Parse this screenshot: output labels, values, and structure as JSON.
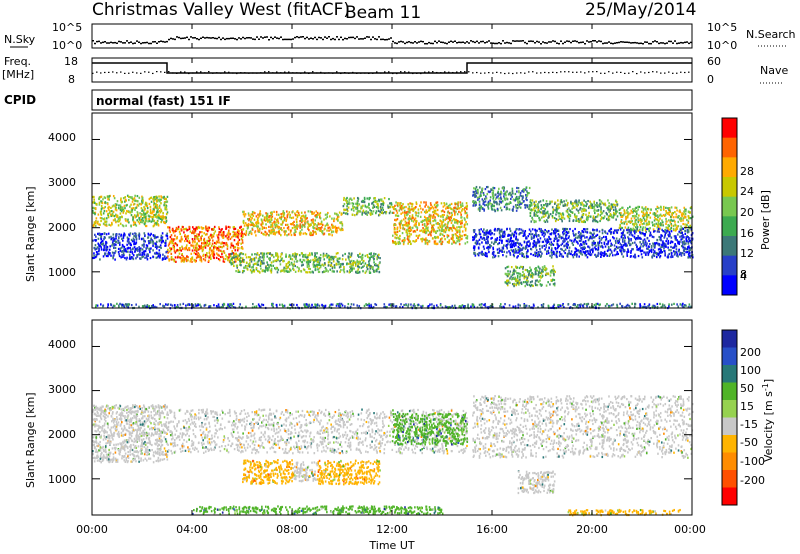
{
  "header": {
    "title": "Christmas Valley West (fitACF)",
    "beam": "Beam 11",
    "date": "25/May/2014"
  },
  "status_panels": {
    "nsky_label": "N.Sky",
    "nsearch_label": "N.Search",
    "nsky_ticks": [
      "10^5",
      "10^0"
    ],
    "nsearch_ticks": [
      "10^5",
      "10^0"
    ],
    "freq_label_line1": "Freq.",
    "freq_label_line2": "[MHz]",
    "freq_ticks": [
      "18",
      "8"
    ],
    "nave_label": "Nave",
    "nave_ticks": [
      "60",
      "0"
    ],
    "cpid_label": "CPID",
    "cpid_text": "normal (fast) 151 IF",
    "freq_step": [
      {
        "t": 0,
        "level": "high"
      },
      {
        "t": 3.0,
        "level": "low"
      },
      {
        "t": 15.0,
        "level": "high"
      },
      {
        "t": 24,
        "level": "high"
      }
    ]
  },
  "x_axis": {
    "label": "Time UT",
    "ticks": [
      "00:00",
      "04:00",
      "08:00",
      "12:00",
      "16:00",
      "20:00",
      "00:00"
    ],
    "tick_hours": [
      0,
      4,
      8,
      12,
      16,
      20,
      24
    ]
  },
  "power_panel": {
    "ylabel": "Slant Range [km]",
    "yticks": [
      "4000",
      "3000",
      "2000",
      "1000"
    ],
    "colorbar_label": "Power [dB]",
    "colorbar_ticks": [
      "28",
      "24",
      "20",
      "16",
      "12",
      "8",
      "4"
    ],
    "colors": [
      "#0000ff",
      "#2840c8",
      "#3c7878",
      "#3caa50",
      "#78c850",
      "#c8c800",
      "#ffaa00",
      "#ff6400",
      "#ff0000"
    ]
  },
  "velocity_panel": {
    "ylabel": "Slant Range [km]",
    "yticks": [
      "4000",
      "3000",
      "2000",
      "1000"
    ],
    "colorbar_label": "Velocity [m s^-1]",
    "colorbar_ticks": [
      "200",
      "100",
      "50",
      "15",
      "-15",
      "-50",
      "-100",
      "-200"
    ],
    "colors": [
      "#1e28a0",
      "#2850c8",
      "#287878",
      "#50b428",
      "#96d250",
      "#c8c8c8",
      "#ffb400",
      "#ff8c00",
      "#ff5000",
      "#ff0000"
    ]
  },
  "chart_data": {
    "type": "heatmap",
    "x_range_hours": [
      0,
      24
    ],
    "y_range_km": [
      180,
      4600
    ],
    "power_bands": [
      {
        "t0": 0.0,
        "t1": 3.0,
        "r0": 2050,
        "r1": 2750,
        "level": 5
      },
      {
        "t0": 0.0,
        "t1": 3.0,
        "r0": 1300,
        "r1": 1900,
        "level": 1
      },
      {
        "t0": 3.0,
        "t1": 6.0,
        "r0": 1250,
        "r1": 2050,
        "level": 7
      },
      {
        "t0": 6.0,
        "t1": 10.0,
        "r0": 1850,
        "r1": 2400,
        "level": 6
      },
      {
        "t0": 10.0,
        "t1": 12.0,
        "r0": 2300,
        "r1": 2700,
        "level": 4
      },
      {
        "t0": 12.0,
        "t1": 15.0,
        "r0": 1650,
        "r1": 2600,
        "level": 6
      },
      {
        "t0": 5.5,
        "t1": 11.5,
        "r0": 1000,
        "r1": 1450,
        "level": 4
      },
      {
        "t0": 15.2,
        "t1": 17.5,
        "r0": 2400,
        "r1": 2950,
        "level": 3
      },
      {
        "t0": 17.5,
        "t1": 21.0,
        "r0": 2150,
        "r1": 2650,
        "level": 4
      },
      {
        "t0": 21.0,
        "t1": 24.0,
        "r0": 1950,
        "r1": 2500,
        "level": 5
      },
      {
        "t0": 15.2,
        "t1": 24.0,
        "r0": 1350,
        "r1": 2000,
        "level": 1
      },
      {
        "t0": 16.5,
        "t1": 18.5,
        "r0": 700,
        "r1": 1150,
        "level": 4
      },
      {
        "t0": 0.0,
        "t1": 24.0,
        "r0": 200,
        "r1": 300,
        "level": 2
      }
    ],
    "velocity_bands": [
      {
        "t0": 0.0,
        "t1": 3.0,
        "r0": 1400,
        "r1": 2700,
        "v": "gray"
      },
      {
        "t0": 3.0,
        "t1": 15.0,
        "r0": 1600,
        "r1": 2600,
        "v": "gray"
      },
      {
        "t0": 6.0,
        "t1": 8.0,
        "r0": 900,
        "r1": 1450,
        "v": "orange"
      },
      {
        "t0": 9.0,
        "t1": 11.5,
        "r0": 900,
        "r1": 1450,
        "v": "orange"
      },
      {
        "t0": 8.0,
        "t1": 9.0,
        "r0": 950,
        "r1": 1400,
        "v": "gray"
      },
      {
        "t0": 12.0,
        "t1": 15.0,
        "r0": 1800,
        "r1": 2500,
        "v": "green"
      },
      {
        "t0": 15.2,
        "t1": 24.0,
        "r0": 1500,
        "r1": 2900,
        "v": "gray"
      },
      {
        "t0": 17.0,
        "t1": 18.5,
        "r0": 700,
        "r1": 1200,
        "v": "gray"
      },
      {
        "t0": 4.0,
        "t1": 14.0,
        "r0": 220,
        "r1": 400,
        "v": "green"
      },
      {
        "t0": 19.0,
        "t1": 23.5,
        "r0": 200,
        "r1": 320,
        "v": "orange"
      }
    ]
  }
}
